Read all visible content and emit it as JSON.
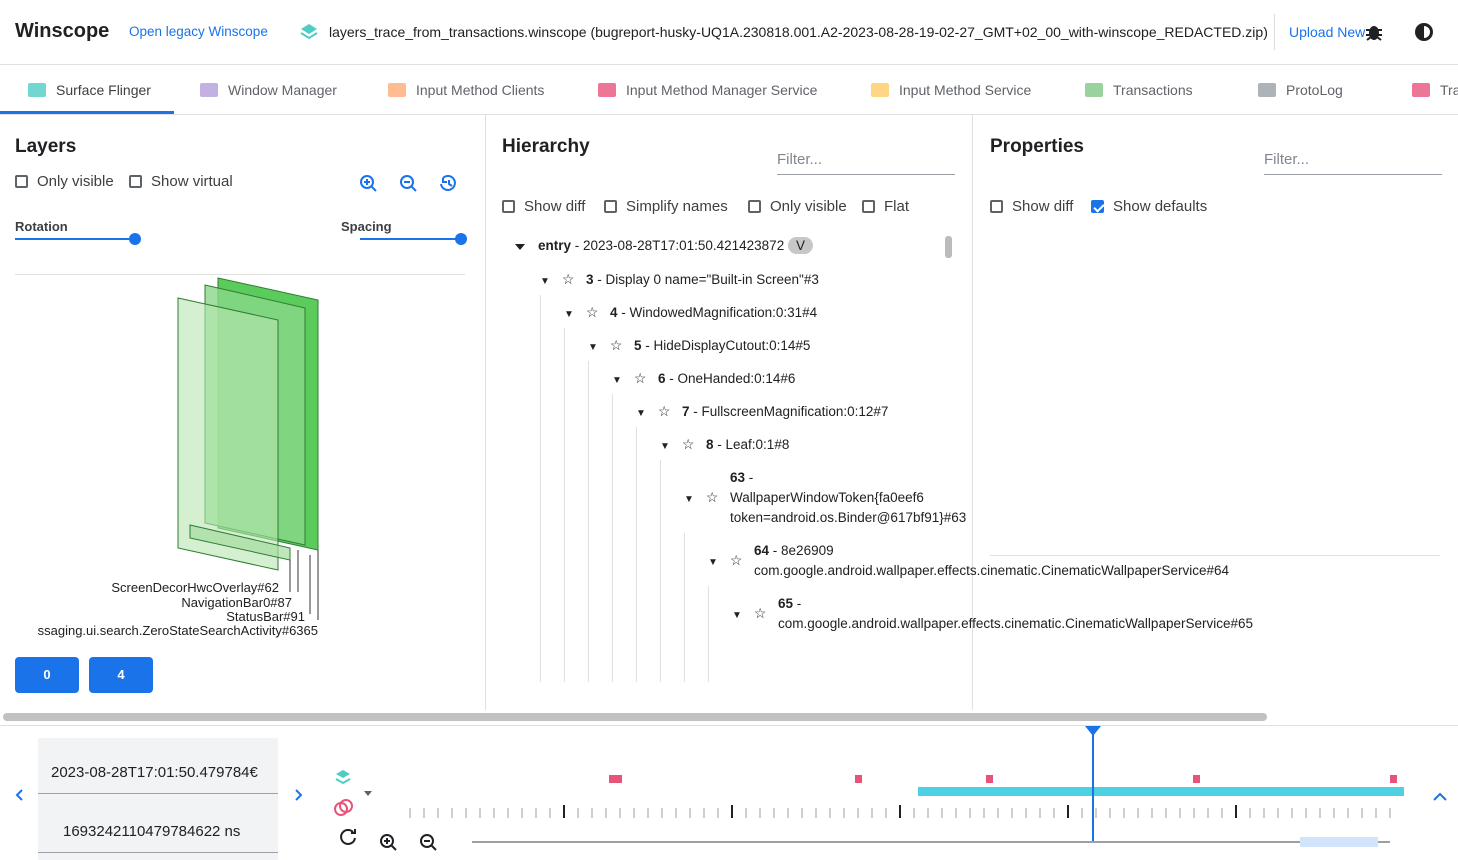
{
  "header": {
    "title": "Winscope",
    "legacy_link": "Open legacy Winscope",
    "file": "layers_trace_from_transactions.winscope (bugreport-husky-UQ1A.230818.001.A2-2023-08-28-19-02-27_GMT+02_00_with-winscope_REDACTED.zip)",
    "upload": "Upload New"
  },
  "tabs": [
    {
      "label": "Surface Flinger",
      "active": true
    },
    {
      "label": "Window Manager",
      "active": false
    },
    {
      "label": "Input Method Clients",
      "active": false
    },
    {
      "label": "Input Method Manager Service",
      "active": false
    },
    {
      "label": "Input Method Service",
      "active": false
    },
    {
      "label": "Transactions",
      "active": false
    },
    {
      "label": "ProtoLog",
      "active": false
    },
    {
      "label": "Tra",
      "active": false
    }
  ],
  "layers": {
    "title": "Layers",
    "checkboxes": [
      {
        "label": "Only visible",
        "checked": false
      },
      {
        "label": "Show virtual",
        "checked": false
      }
    ],
    "sliders": [
      "Rotation",
      "Spacing"
    ],
    "labels": [
      "ScreenDecorHwcOverlay#62",
      "NavigationBar0#87",
      "StatusBar#91",
      "ssaging.ui.search.ZeroStateSearchActivity#6365"
    ],
    "buttons": [
      "0",
      "4"
    ]
  },
  "hierarchy": {
    "title": "Hierarchy",
    "filter": "Filter...",
    "checkboxes": [
      {
        "label": "Show diff",
        "checked": false
      },
      {
        "label": "Simplify names",
        "checked": false
      },
      {
        "label": "Only visible",
        "checked": false
      },
      {
        "label": "Flat",
        "checked": false
      }
    ],
    "root": {
      "label": "entry",
      "timestamp": "- 2023-08-28T17:01:50.421423872",
      "badge": "V"
    },
    "nodes": [
      {
        "id": "3",
        "name": "- Display 0 name=\"Built-in Screen\"#3"
      },
      {
        "id": "4",
        "name": "- WindowedMagnification:0:31#4"
      },
      {
        "id": "5",
        "name": "- HideDisplayCutout:0:14#5"
      },
      {
        "id": "6",
        "name": "- OneHanded:0:14#6"
      },
      {
        "id": "7",
        "name": "- FullscreenMagnification:0:12#7"
      },
      {
        "id": "8",
        "name": "- Leaf:0:1#8"
      },
      {
        "id": "63",
        "name": "- WallpaperWindowToken{fa0eef6 token=android.os.Binder@617bf91}#63"
      },
      {
        "id": "64",
        "name": "- 8e26909 com.google.android.wallpaper.effects.cinematic.CinematicWallpaperService#64"
      },
      {
        "id": "65",
        "name": "- com.google.android.wallpaper.effects.cinematic.CinematicWallpaperService#65"
      }
    ]
  },
  "properties": {
    "title": "Properties",
    "filter": "Filter...",
    "checkboxes": [
      {
        "label": "Show diff",
        "checked": false
      },
      {
        "label": "Show defaults",
        "checked": true
      }
    ]
  },
  "timeline": {
    "timestamp": "2023-08-28T17:01:50.479784€",
    "ns": "1693242110479784622 ns"
  }
}
